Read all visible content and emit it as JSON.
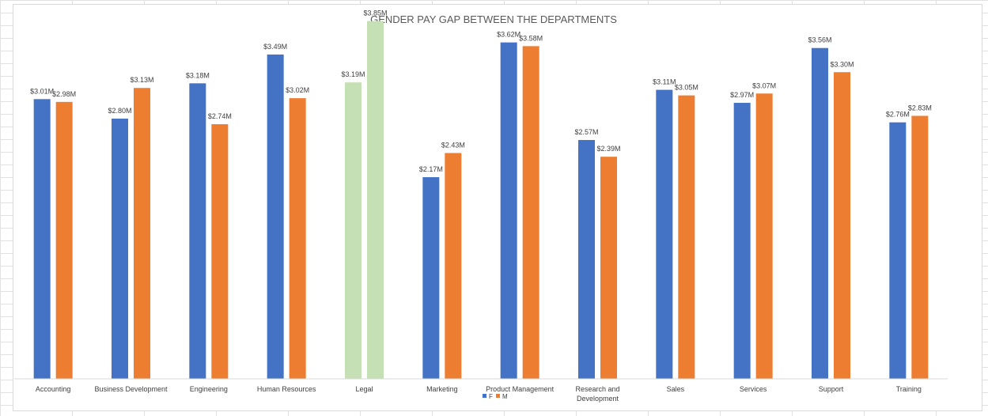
{
  "chart_data": {
    "type": "bar",
    "title": "GENDER PAY GAP BETWEEN THE DEPARTMENTS",
    "categories": [
      "Accounting",
      "Business Development",
      "Engineering",
      "Human Resources",
      "Legal",
      "Marketing",
      "Product Management",
      "Research and Development",
      "Sales",
      "Services",
      "Support",
      "Training"
    ],
    "category_lines": [
      [
        "Accounting"
      ],
      [
        "Business Development"
      ],
      [
        "Engineering"
      ],
      [
        "Human Resources"
      ],
      [
        "Legal"
      ],
      [
        "Marketing"
      ],
      [
        "Product Management"
      ],
      [
        "Research and",
        "Development"
      ],
      [
        "Sales"
      ],
      [
        "Services"
      ],
      [
        "Support"
      ],
      [
        "Training"
      ]
    ],
    "series": [
      {
        "name": "F",
        "color": "#4472c4",
        "values": [
          3.01,
          2.8,
          3.18,
          3.49,
          3.19,
          2.17,
          3.62,
          2.57,
          3.11,
          2.97,
          3.56,
          2.76
        ],
        "labels": [
          "$3.01M",
          "$2.80M",
          "$3.18M",
          "$3.49M",
          "$3.19M",
          "$2.17M",
          "$3.62M",
          "$2.57M",
          "$3.11M",
          "$2.97M",
          "$3.56M",
          "$2.76M"
        ]
      },
      {
        "name": "M",
        "color": "#ed7d31",
        "values": [
          2.98,
          3.13,
          2.74,
          3.02,
          3.85,
          2.43,
          3.58,
          2.39,
          3.05,
          3.07,
          3.3,
          2.83
        ],
        "labels": [
          "$2.98M",
          "$3.13M",
          "$2.74M",
          "$3.02M",
          "$3.85M",
          "$2.43M",
          "$3.58M",
          "$2.39M",
          "$3.05M",
          "$3.07M",
          "$3.30M",
          "$2.83M"
        ]
      }
    ],
    "highlight": {
      "category": "Legal",
      "color": "#c5e0b4"
    },
    "ylim": [
      0,
      4.0
    ],
    "unit": "$M",
    "grid": false,
    "legend": "bottom",
    "xlabel": "",
    "ylabel": ""
  }
}
